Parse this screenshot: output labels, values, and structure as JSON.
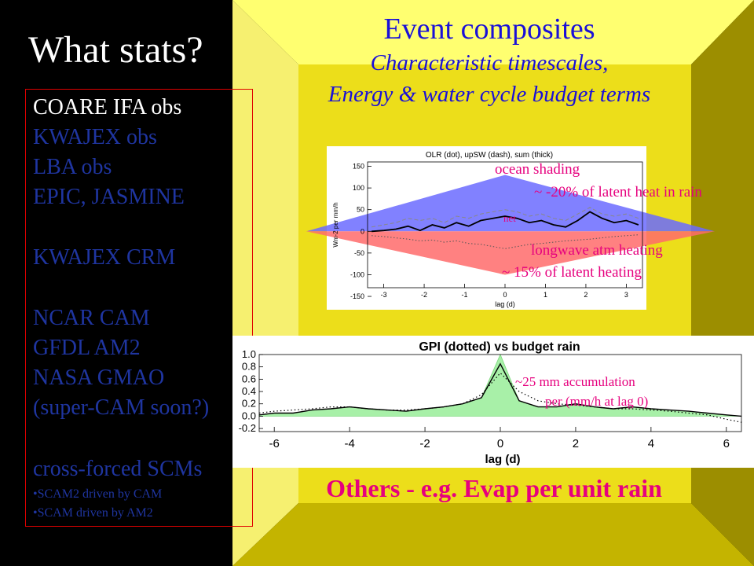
{
  "slide": {
    "title": "What stats?",
    "heading": "Event composites",
    "subheading_line1": "Characteristic timescales,",
    "subheading_line2": "Energy & water cycle budget terms",
    "bottom_text": "Others - e.g. Evap per unit rain",
    "list": [
      {
        "text": "COARE  IFA obs",
        "color": "#ffffff"
      },
      {
        "text": "KWAJEX obs",
        "color": "#1f35a0"
      },
      {
        "text": "LBA obs",
        "color": "#1f35a0"
      },
      {
        "text": "EPIC, JASMINE",
        "color": "#1f35a0"
      },
      {
        "text": "KWAJEX CRM",
        "color": "#1f35a0"
      },
      {
        "text": "NCAR CAM",
        "color": "#1f35a0"
      },
      {
        "text": "GFDL AM2",
        "color": "#1f35a0"
      },
      {
        "text": "NASA GMAO",
        "color": "#1f35a0"
      },
      {
        "text": "(super-CAM soon?)",
        "color": "#1f35a0"
      },
      {
        "text": "cross-forced SCMs",
        "color": "#1f35a0"
      },
      {
        "text": "•SCAM2 driven by CAM",
        "color": "#1f35a0"
      },
      {
        "text": "•SCAM driven by AM2",
        "color": "#1f35a0"
      }
    ]
  },
  "chart_data": [
    {
      "type": "line",
      "title": "OLR (dot), upSW (dash), sum (thick)",
      "xlabel": "lag (d)",
      "ylabel": "Wm-2 per mm/h",
      "xlim": [
        -3.4,
        3.4
      ],
      "ylim": [
        -130,
        160
      ],
      "x_ticks": [
        "-3",
        "-2",
        "-1",
        "0",
        "1",
        "2",
        "3"
      ],
      "y_ticks": [
        "150",
        "100",
        "50",
        "0",
        "-50",
        "-100",
        "-150"
      ],
      "series": [
        {
          "style": "thick",
          "x": [
            -3.3,
            -3.0,
            -2.7,
            -2.4,
            -2.1,
            -1.8,
            -1.5,
            -1.2,
            -0.9,
            -0.6,
            -0.3,
            0.0,
            0.3,
            0.6,
            0.9,
            1.2,
            1.5,
            1.8,
            2.1,
            2.4,
            2.7,
            3.0,
            3.3
          ],
          "y": [
            0,
            2,
            5,
            12,
            2,
            15,
            8,
            20,
            12,
            25,
            30,
            35,
            30,
            20,
            25,
            15,
            10,
            25,
            45,
            30,
            20,
            25,
            15
          ]
        },
        {
          "style": "dash",
          "x": [
            -3.3,
            -3.0,
            -2.7,
            -2.4,
            -2.1,
            -1.8,
            -1.5,
            -1.2,
            -0.9,
            -0.6,
            -0.3,
            0.0,
            0.3,
            0.6,
            0.9,
            1.2,
            1.5,
            1.8,
            2.1,
            2.4,
            2.7,
            3.0,
            3.3
          ],
          "y": [
            10,
            15,
            20,
            30,
            25,
            30,
            20,
            35,
            30,
            40,
            45,
            50,
            45,
            35,
            40,
            30,
            25,
            40,
            55,
            40,
            35,
            40,
            30
          ]
        },
        {
          "style": "dot",
          "x": [
            -3.3,
            -3.0,
            -2.7,
            -2.4,
            -2.1,
            -1.8,
            -1.5,
            -1.2,
            -0.9,
            -0.6,
            -0.3,
            0.0,
            0.3,
            0.6,
            0.9,
            1.2,
            1.5,
            1.8,
            2.1,
            2.4,
            2.7,
            3.0,
            3.3
          ],
          "y": [
            -10,
            -12,
            -15,
            -18,
            -22,
            -20,
            -25,
            -22,
            -28,
            -30,
            -35,
            -40,
            -35,
            -30,
            -28,
            -25,
            -22,
            -20,
            -18,
            -15,
            -12,
            -10,
            -8
          ]
        }
      ],
      "annotations": [
        {
          "text": "ocean shading",
          "color": "#e6007e"
        },
        {
          "text": "~ -20% of latent heat in rain",
          "color": "#e6007e"
        },
        {
          "text": "net",
          "color": "#e6007e"
        },
        {
          "text": "longwave atm heating",
          "color": "#e6007e"
        },
        {
          "text": "~ 15% of latent heating",
          "color": "#e6007e"
        }
      ],
      "shaded_regions": [
        {
          "name": "ocean shading",
          "color": "#6b6bff",
          "peak_value": 130
        },
        {
          "name": "longwave atm heating",
          "color": "#ff6b6b",
          "peak_value": -100
        }
      ]
    },
    {
      "type": "line",
      "title": "GPI (dotted) vs budget rain",
      "xlabel": "lag (d)",
      "xlim": [
        -6.4,
        6.4
      ],
      "ylim": [
        -0.25,
        1.0
      ],
      "x_ticks": [
        "-6",
        "-4",
        "-2",
        "0",
        "2",
        "4",
        "6"
      ],
      "y_ticks": [
        "1.0",
        "0.8",
        "0.6",
        "0.4",
        "0.2",
        "0.0",
        "-0.2"
      ],
      "series": [
        {
          "style": "solid",
          "x": [
            -6.4,
            -6,
            -5.5,
            -5,
            -4.5,
            -4,
            -3.5,
            -3,
            -2.5,
            -2,
            -1.5,
            -1,
            -0.5,
            0,
            0.5,
            1,
            1.5,
            2,
            2.5,
            3,
            3.5,
            4,
            4.5,
            5,
            5.5,
            6,
            6.4
          ],
          "y": [
            0.02,
            0.05,
            0.05,
            0.1,
            0.12,
            0.15,
            0.12,
            0.1,
            0.08,
            0.12,
            0.15,
            0.2,
            0.3,
            0.85,
            0.25,
            0.15,
            0.15,
            0.2,
            0.15,
            0.12,
            0.15,
            0.12,
            0.1,
            0.08,
            0.05,
            0.02,
            0.0
          ]
        },
        {
          "style": "dotted",
          "x": [
            -6.4,
            -6,
            -5.5,
            -5,
            -4.5,
            -4,
            -3.5,
            -3,
            -2.5,
            -2,
            -1.5,
            -1,
            -0.5,
            0,
            0.5,
            1,
            1.5,
            2,
            2.5,
            3,
            3.5,
            4,
            4.5,
            5,
            5.5,
            6,
            6.4
          ],
          "y": [
            0.05,
            0.08,
            0.1,
            0.12,
            0.15,
            0.15,
            0.12,
            0.1,
            0.1,
            0.12,
            0.15,
            0.2,
            0.35,
            0.7,
            0.4,
            0.25,
            0.2,
            0.18,
            0.15,
            0.12,
            0.12,
            0.1,
            0.08,
            0.05,
            0.02,
            -0.05,
            -0.1
          ]
        }
      ],
      "fill": {
        "color": "#a8f0a8",
        "peak_value": 1.0
      },
      "annotations": [
        {
          "text": "~25 mm accumulation",
          "color": "#e6007e"
        },
        {
          "text": "per (mm/h at lag 0)",
          "color": "#e6007e"
        }
      ]
    }
  ]
}
